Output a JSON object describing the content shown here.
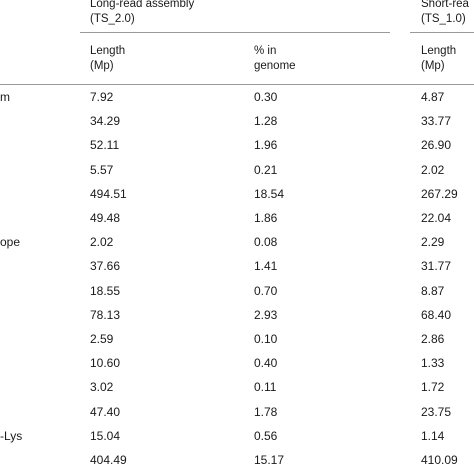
{
  "header": {
    "long_read_title_line1": "Long-read assembly",
    "long_read_title_line2": "(TS_2.0)",
    "short_read_title_line1": "Short-rea",
    "short_read_title_line2": "(TS_1.0)",
    "col_length_line1": "Length",
    "col_length_line2": "(Mp)",
    "col_pct_line1": "% in",
    "col_pct_line2": "genome",
    "col_short_length_line1": "Length",
    "col_short_length_line2": "(Mp)"
  },
  "rows": [
    {
      "label": "m",
      "length": "7.92",
      "pct": "0.30",
      "short_length": "4.87"
    },
    {
      "label": "",
      "length": "34.29",
      "pct": "1.28",
      "short_length": "33.77"
    },
    {
      "label": "",
      "length": "52.11",
      "pct": "1.96",
      "short_length": "26.90"
    },
    {
      "label": "",
      "length": "5.57",
      "pct": "0.21",
      "short_length": "2.02"
    },
    {
      "label": "",
      "length": "494.51",
      "pct": "18.54",
      "short_length": "267.29"
    },
    {
      "label": "",
      "length": "49.48",
      "pct": "1.86",
      "short_length": "22.04"
    },
    {
      "label": "ope",
      "length": "2.02",
      "pct": "0.08",
      "short_length": "2.29"
    },
    {
      "label": "",
      "length": "37.66",
      "pct": "1.41",
      "short_length": "31.77"
    },
    {
      "label": "",
      "length": "18.55",
      "pct": "0.70",
      "short_length": "8.87"
    },
    {
      "label": "",
      "length": "78.13",
      "pct": "2.93",
      "short_length": "68.40"
    },
    {
      "label": "",
      "length": "2.59",
      "pct": "0.10",
      "short_length": "2.86"
    },
    {
      "label": "",
      "length": "10.60",
      "pct": "0.40",
      "short_length": "1.33"
    },
    {
      "label": "",
      "length": "3.02",
      "pct": "0.11",
      "short_length": "1.72"
    },
    {
      "label": "",
      "length": "47.40",
      "pct": "1.78",
      "short_length": "23.75"
    },
    {
      "label": "-Lys",
      "length": "15.04",
      "pct": "0.56",
      "short_length": "1.14"
    },
    {
      "label": "",
      "length": "404.49",
      "pct": "15.17",
      "short_length": "410.09"
    }
  ]
}
